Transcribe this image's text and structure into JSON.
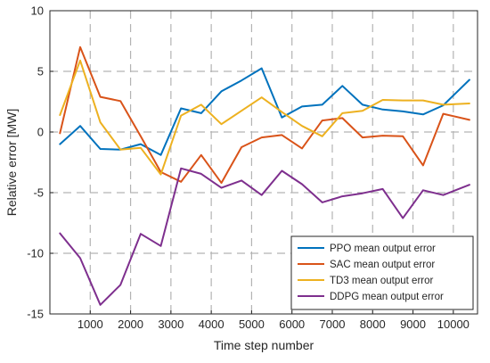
{
  "chart_data": {
    "type": "line",
    "xlabel": "Time step number",
    "ylabel": "Relative error [MW]",
    "xlim": [
      0,
      10600
    ],
    "ylim": [
      -15,
      10
    ],
    "xticks": [
      1000,
      2000,
      3000,
      4000,
      5000,
      6000,
      7000,
      8000,
      9000,
      10000
    ],
    "yticks": [
      -15,
      -10,
      -5,
      0,
      5,
      10
    ],
    "grid": true,
    "grid_style": "dashed",
    "legend_position": "lower-right",
    "x": [
      250,
      750,
      1250,
      1750,
      2250,
      2750,
      3250,
      3750,
      4250,
      4750,
      5250,
      5750,
      6250,
      6750,
      7250,
      7750,
      8250,
      8750,
      9250,
      9750,
      10400
    ],
    "series": [
      {
        "name": "PPO mean output error",
        "color": "#0072BD",
        "values": [
          -1.0,
          0.5,
          -1.4,
          -1.45,
          -1.0,
          -1.9,
          1.95,
          1.55,
          3.35,
          4.25,
          5.25,
          1.2,
          2.1,
          2.25,
          3.8,
          2.25,
          1.85,
          1.7,
          1.45,
          2.2,
          4.3
        ]
      },
      {
        "name": "SAC mean output error",
        "color": "#D95319",
        "values": [
          -0.1,
          7.0,
          2.9,
          2.55,
          -0.35,
          -3.3,
          -4.1,
          -1.9,
          -4.2,
          -1.25,
          -0.45,
          -0.25,
          -1.35,
          0.95,
          1.15,
          -0.45,
          -0.3,
          -0.35,
          -2.75,
          1.5,
          1.0
        ]
      },
      {
        "name": "TD3 mean output error",
        "color": "#EDB120",
        "values": [
          1.4,
          5.9,
          0.8,
          -1.45,
          -1.3,
          -3.5,
          1.35,
          2.25,
          0.65,
          1.75,
          2.85,
          1.65,
          0.5,
          -0.35,
          1.55,
          1.75,
          2.65,
          2.6,
          2.6,
          2.25,
          2.35
        ]
      },
      {
        "name": "DDPG mean output error",
        "color": "#7E2F8E",
        "values": [
          -8.35,
          -10.4,
          -14.25,
          -12.6,
          -8.4,
          -9.4,
          -3.0,
          -3.45,
          -4.6,
          -4.0,
          -5.2,
          -3.2,
          -4.3,
          -5.8,
          -5.3,
          -5.05,
          -4.7,
          -7.1,
          -4.8,
          -5.2,
          -4.35
        ]
      }
    ]
  }
}
